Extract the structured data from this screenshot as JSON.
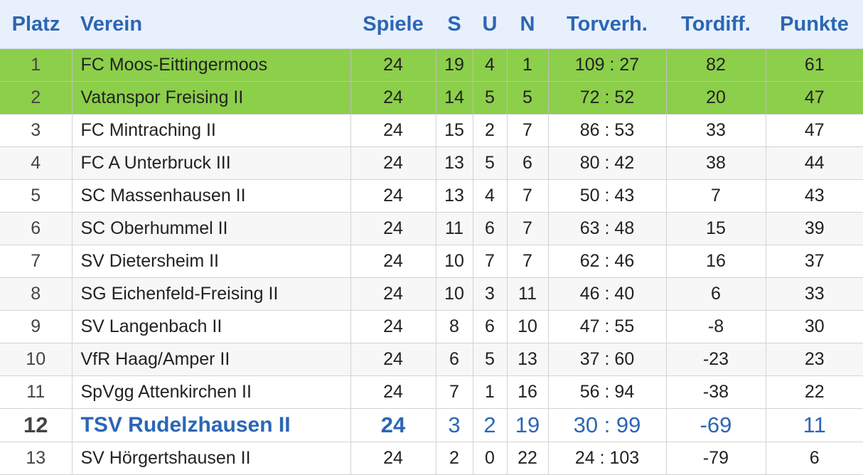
{
  "headers": {
    "platz": "Platz",
    "verein": "Verein",
    "spiele": "Spiele",
    "s": "S",
    "u": "U",
    "n": "N",
    "torverh": "Torverh.",
    "tordiff": "Tordiff.",
    "punkte": "Punkte"
  },
  "colors": {
    "header_bg": "#e8f0fb",
    "header_text": "#2b66b5",
    "promotion_bg": "#8ccf4a",
    "highlight_text": "#2b66b5"
  },
  "rows": [
    {
      "platz": "1",
      "verein": "FC Moos-Eittingermoos",
      "spiele": "24",
      "s": "19",
      "u": "4",
      "n": "1",
      "torverh": "109 : 27",
      "tordiff": "82",
      "punkte": "61",
      "style": "promo"
    },
    {
      "platz": "2",
      "verein": "Vatanspor Freising II",
      "spiele": "24",
      "s": "14",
      "u": "5",
      "n": "5",
      "torverh": "72 : 52",
      "tordiff": "20",
      "punkte": "47",
      "style": "promo"
    },
    {
      "platz": "3",
      "verein": "FC Mintraching II",
      "spiele": "24",
      "s": "15",
      "u": "2",
      "n": "7",
      "torverh": "86 : 53",
      "tordiff": "33",
      "punkte": "47",
      "style": "odd"
    },
    {
      "platz": "4",
      "verein": "FC A Unterbruck III",
      "spiele": "24",
      "s": "13",
      "u": "5",
      "n": "6",
      "torverh": "80 : 42",
      "tordiff": "38",
      "punkte": "44",
      "style": "even"
    },
    {
      "platz": "5",
      "verein": "SC Massenhausen II",
      "spiele": "24",
      "s": "13",
      "u": "4",
      "n": "7",
      "torverh": "50 : 43",
      "tordiff": "7",
      "punkte": "43",
      "style": "odd"
    },
    {
      "platz": "6",
      "verein": "SC Oberhummel II",
      "spiele": "24",
      "s": "11",
      "u": "6",
      "n": "7",
      "torverh": "63 : 48",
      "tordiff": "15",
      "punkte": "39",
      "style": "even"
    },
    {
      "platz": "7",
      "verein": "SV Dietersheim II",
      "spiele": "24",
      "s": "10",
      "u": "7",
      "n": "7",
      "torverh": "62 : 46",
      "tordiff": "16",
      "punkte": "37",
      "style": "odd"
    },
    {
      "platz": "8",
      "verein": "SG Eichenfeld-Freising II",
      "spiele": "24",
      "s": "10",
      "u": "3",
      "n": "11",
      "torverh": "46 : 40",
      "tordiff": "6",
      "punkte": "33",
      "style": "even"
    },
    {
      "platz": "9",
      "verein": "SV Langenbach II",
      "spiele": "24",
      "s": "8",
      "u": "6",
      "n": "10",
      "torverh": "47 : 55",
      "tordiff": "-8",
      "punkte": "30",
      "style": "odd"
    },
    {
      "platz": "10",
      "verein": "VfR Haag/Amper II",
      "spiele": "24",
      "s": "6",
      "u": "5",
      "n": "13",
      "torverh": "37 : 60",
      "tordiff": "-23",
      "punkte": "23",
      "style": "even"
    },
    {
      "platz": "11",
      "verein": "SpVgg Attenkirchen II",
      "spiele": "24",
      "s": "7",
      "u": "1",
      "n": "16",
      "torverh": "56 : 94",
      "tordiff": "-38",
      "punkte": "22",
      "style": "odd"
    },
    {
      "platz": "12",
      "verein": "TSV Rudelzhausen II",
      "spiele": "24",
      "s": "3",
      "u": "2",
      "n": "19",
      "torverh": "30 : 99",
      "tordiff": "-69",
      "punkte": "11",
      "style": "hl"
    },
    {
      "platz": "13",
      "verein": "SV Hörgertshausen II",
      "spiele": "24",
      "s": "2",
      "u": "0",
      "n": "22",
      "torverh": "24 : 103",
      "tordiff": "-79",
      "punkte": "6",
      "style": "odd"
    }
  ]
}
